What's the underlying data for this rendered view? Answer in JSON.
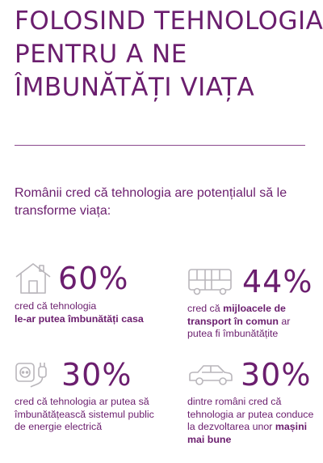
{
  "title": {
    "line1": "FOLOSIND TEHNOLOGIA",
    "line2": "PENTRU A NE",
    "line3": "ÎMBUNĂTĂȚI VIAȚA"
  },
  "subtitle": "Românii cred că tehnologia are potențialul să le transforme viața:",
  "colors": {
    "accent": "#6b1e6e",
    "icon": "#b9b6bb"
  },
  "stats": [
    {
      "icon": "house-icon",
      "percent": "60%",
      "desc": {
        "t1": "cred că tehnologia",
        "b1": "le-ar putea îmbunătăți casa",
        "t2": ""
      }
    },
    {
      "icon": "bus-icon",
      "percent": "44%",
      "desc": {
        "t1": "cred că",
        "b1": "mijloacele de transport în comun",
        "t2": "ar putea fi îmbunătățite"
      }
    },
    {
      "icon": "plug-socket-icon",
      "percent": "30%",
      "desc": {
        "t1": "cred că tehnologia ar putea să îmbunătățească sistemul public de energie electrică",
        "b1": "",
        "t2": ""
      }
    },
    {
      "icon": "car-icon",
      "percent": "30%",
      "desc": {
        "t1": "dintre români cred că tehnologia ar putea conduce la dezvoltarea unor",
        "b1": "mașini mai bune",
        "t2": ""
      }
    }
  ]
}
